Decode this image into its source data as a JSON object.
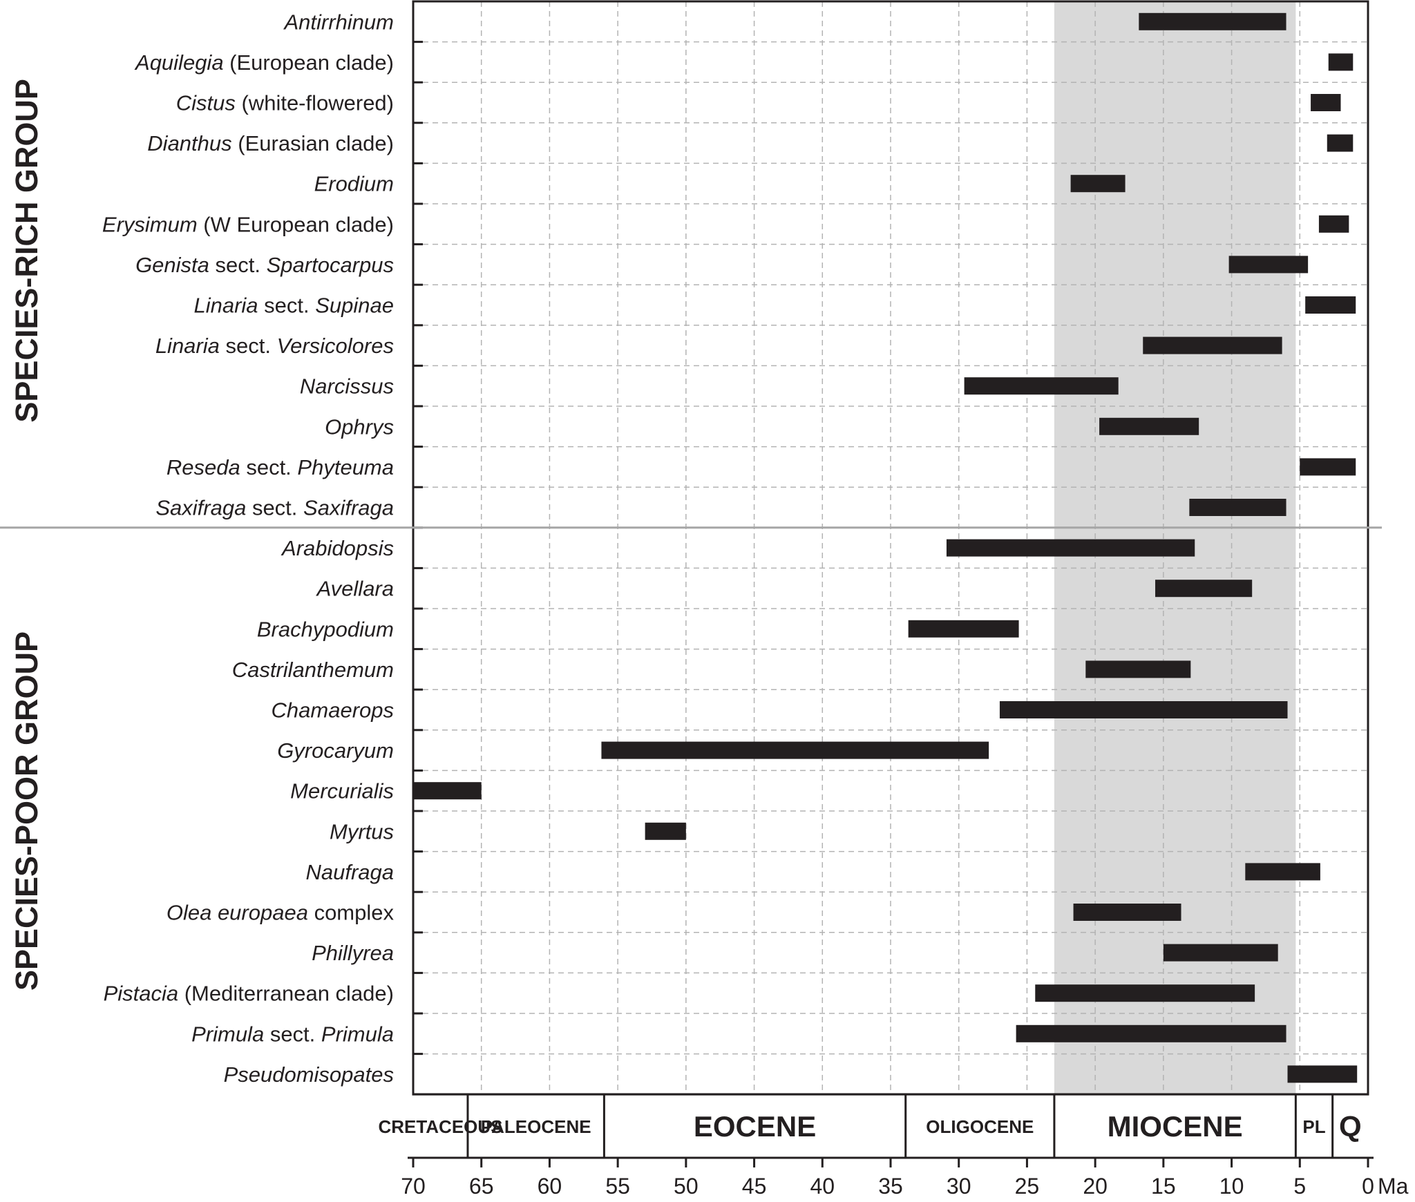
{
  "chart_data": {
    "type": "bar",
    "subtype": "range-timeline",
    "title": "",
    "x_unit_label": "Ma",
    "x_axis_reversed": true,
    "xlim": [
      70,
      0
    ],
    "x_ticks": [
      70,
      65,
      60,
      55,
      50,
      45,
      40,
      35,
      30,
      25,
      20,
      15,
      10,
      5,
      0
    ],
    "grid": true,
    "shaded_interval": {
      "from": 23.0,
      "to": 5.3,
      "color": "#d9d9d9"
    },
    "groups": [
      {
        "name": "SPECIES-RICH GROUP",
        "rows": [
          {
            "label": [
              {
                "t": "Antirrhinum",
                "i": true
              }
            ],
            "start": 16.8,
            "end": 6.0
          },
          {
            "label": [
              {
                "t": "Aquilegia",
                "i": true
              },
              {
                "t": " (European clade)",
                "i": false
              }
            ],
            "start": 2.9,
            "end": 1.1
          },
          {
            "label": [
              {
                "t": "Cistus",
                "i": true
              },
              {
                "t": " (white-flowered)",
                "i": false
              }
            ],
            "start": 4.2,
            "end": 2.0
          },
          {
            "label": [
              {
                "t": "Dianthus",
                "i": true
              },
              {
                "t": " (Eurasian clade)",
                "i": false
              }
            ],
            "start": 3.0,
            "end": 1.1
          },
          {
            "label": [
              {
                "t": "Erodium",
                "i": true
              }
            ],
            "start": 21.8,
            "end": 17.8
          },
          {
            "label": [
              {
                "t": "Erysimum",
                "i": true
              },
              {
                "t": " (W European clade)",
                "i": false
              }
            ],
            "start": 3.6,
            "end": 1.4
          },
          {
            "label": [
              {
                "t": "Genista",
                "i": true
              },
              {
                "t": " sect. ",
                "i": false
              },
              {
                "t": "Spartocarpus",
                "i": true
              }
            ],
            "start": 10.2,
            "end": 4.4
          },
          {
            "label": [
              {
                "t": "Linaria",
                "i": true
              },
              {
                "t": " sect. ",
                "i": false
              },
              {
                "t": "Supinae",
                "i": true
              }
            ],
            "start": 4.6,
            "end": 0.9
          },
          {
            "label": [
              {
                "t": "Linaria",
                "i": true
              },
              {
                "t": " sect. ",
                "i": false
              },
              {
                "t": "Versicolores",
                "i": true
              }
            ],
            "start": 16.5,
            "end": 6.3
          },
          {
            "label": [
              {
                "t": "Narcissus",
                "i": true
              }
            ],
            "start": 29.6,
            "end": 18.3
          },
          {
            "label": [
              {
                "t": "Ophrys",
                "i": true
              }
            ],
            "start": 19.7,
            "end": 12.4
          },
          {
            "label": [
              {
                "t": "Reseda",
                "i": true
              },
              {
                "t": " sect. ",
                "i": false
              },
              {
                "t": "Phyteuma",
                "i": true
              }
            ],
            "start": 5.0,
            "end": 0.9
          },
          {
            "label": [
              {
                "t": "Saxifraga",
                "i": true
              },
              {
                "t": " sect. ",
                "i": false
              },
              {
                "t": "Saxifraga",
                "i": true
              }
            ],
            "start": 13.1,
            "end": 6.0
          }
        ]
      },
      {
        "name": "SPECIES-POOR GROUP",
        "rows": [
          {
            "label": [
              {
                "t": "Arabidopsis",
                "i": true
              }
            ],
            "start": 30.9,
            "end": 12.7
          },
          {
            "label": [
              {
                "t": "Avellara",
                "i": true
              }
            ],
            "start": 15.6,
            "end": 8.5
          },
          {
            "label": [
              {
                "t": "Brachypodium",
                "i": true
              }
            ],
            "start": 33.7,
            "end": 25.6
          },
          {
            "label": [
              {
                "t": "Castrilanthemum",
                "i": true
              }
            ],
            "start": 20.7,
            "end": 13.0
          },
          {
            "label": [
              {
                "t": "Chamaerops",
                "i": true
              }
            ],
            "start": 27.0,
            "end": 5.9
          },
          {
            "label": [
              {
                "t": "Gyrocaryum",
                "i": true
              }
            ],
            "start": 56.2,
            "end": 27.8
          },
          {
            "label": [
              {
                "t": "Mercurialis",
                "i": true
              }
            ],
            "start": 70.0,
            "end": 65.0
          },
          {
            "label": [
              {
                "t": "Myrtus",
                "i": true
              }
            ],
            "start": 53.0,
            "end": 50.0
          },
          {
            "label": [
              {
                "t": "Naufraga",
                "i": true
              }
            ],
            "start": 9.0,
            "end": 3.5
          },
          {
            "label": [
              {
                "t": "Olea europaea",
                "i": true
              },
              {
                "t": " complex",
                "i": false
              }
            ],
            "start": 21.6,
            "end": 13.7
          },
          {
            "label": [
              {
                "t": "Phillyrea",
                "i": true
              }
            ],
            "start": 15.0,
            "end": 6.6
          },
          {
            "label": [
              {
                "t": "Pistacia",
                "i": true
              },
              {
                "t": " (Mediterranean clade)",
                "i": false
              }
            ],
            "start": 24.4,
            "end": 8.3
          },
          {
            "label": [
              {
                "t": "Primula",
                "i": true
              },
              {
                "t": " sect. ",
                "i": false
              },
              {
                "t": "Primula",
                "i": true
              }
            ],
            "start": 25.8,
            "end": 6.0
          },
          {
            "label": [
              {
                "t": "Pseudomisopates",
                "i": true
              }
            ],
            "start": 5.9,
            "end": 0.8
          }
        ]
      }
    ],
    "epochs": [
      {
        "label": "CRETACEOUS",
        "from": 70,
        "to": 66.0,
        "size": "small"
      },
      {
        "label": "PALEOCENE",
        "from": 66.0,
        "to": 56.0,
        "size": "small"
      },
      {
        "label": "EOCENE",
        "from": 56.0,
        "to": 33.9,
        "size": "big"
      },
      {
        "label": "OLIGOCENE",
        "from": 33.9,
        "to": 23.0,
        "size": "small"
      },
      {
        "label": "MIOCENE",
        "from": 23.0,
        "to": 5.3,
        "size": "big"
      },
      {
        "label": "PL",
        "from": 5.3,
        "to": 2.6,
        "size": "small"
      },
      {
        "label": "Q",
        "from": 2.6,
        "to": 0,
        "size": "big"
      }
    ]
  }
}
